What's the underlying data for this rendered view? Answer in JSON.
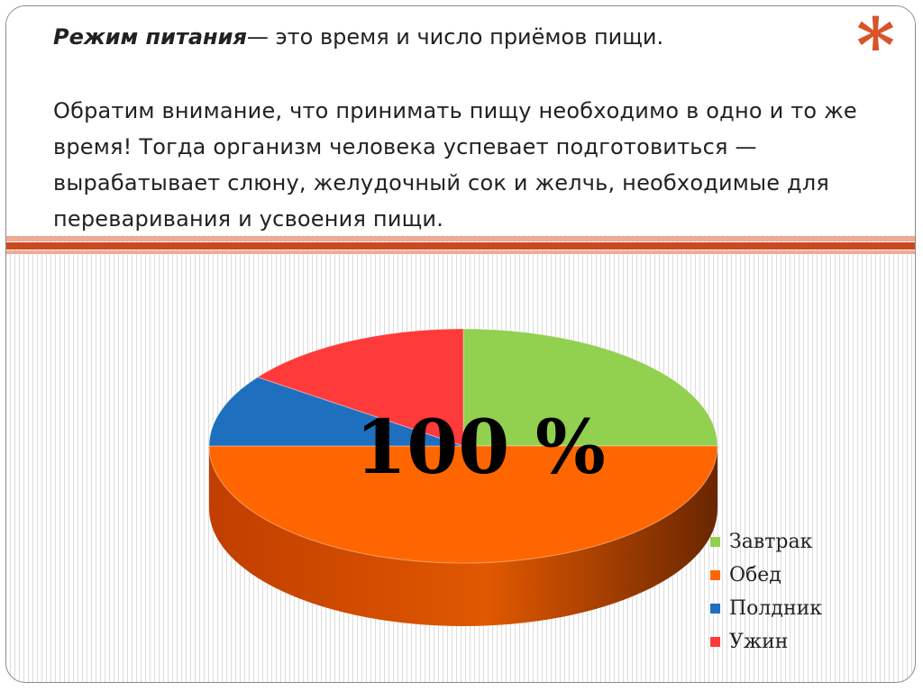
{
  "slide": {
    "title_bold": "Режим питания",
    "title_rest": "— это время и число приёмов пищи.",
    "paragraph": "Обратим внимание, что принимать пищу необходимо в одно и то же время! Тогда организм человека успевает подготовиться — вырабатывает слюну, желудочный сок и желчь, необходимые для переваривания и усвоения пищи.",
    "asterisk": "*"
  },
  "chart_data": {
    "type": "pie",
    "style": "3d",
    "center_label": "100 %",
    "title": "",
    "legend_position": "right-bottom",
    "categories": [
      "Завтрак",
      "Обед",
      "Полдник",
      "Ужин"
    ],
    "values": [
      25,
      50,
      10,
      15
    ],
    "colors": [
      "#92d050",
      "#ff6600",
      "#1f6fbf",
      "#ff3a3a"
    ]
  },
  "colors": {
    "accent": "#d9532a",
    "band_dark": "#c94a21",
    "band_light": "#f0aa93"
  }
}
